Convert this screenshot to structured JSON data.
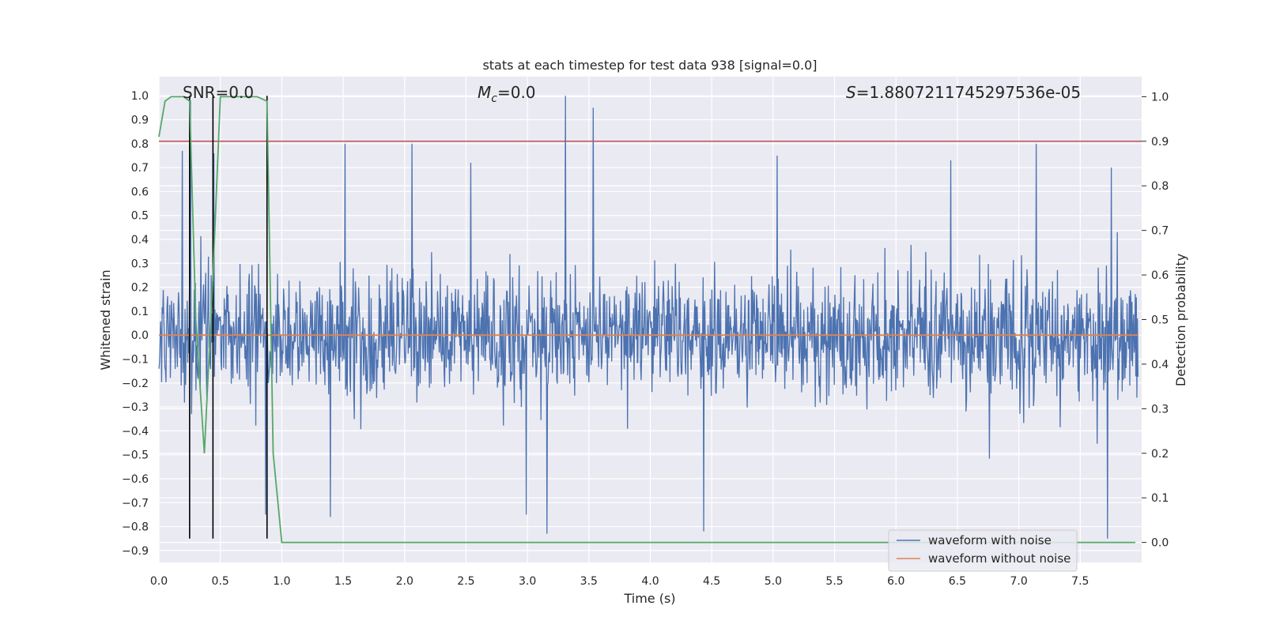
{
  "chart_data": {
    "type": "line",
    "title": "stats at each timestep for test data 938 [signal=0.0]",
    "xlabel": "Time (s)",
    "ylabel": "Whitened strain",
    "ylabel_right": "Detection probability",
    "xlim": [
      0.0,
      8.0
    ],
    "ylim": [
      -0.95,
      1.08
    ],
    "ylim_right": [
      -0.045,
      1.045
    ],
    "x_ticks": [
      "0.0",
      "0.5",
      "1.0",
      "1.5",
      "2.0",
      "2.5",
      "3.0",
      "3.5",
      "4.0",
      "4.5",
      "5.0",
      "5.5",
      "6.0",
      "6.5",
      "7.0",
      "7.5"
    ],
    "y_ticks": [
      "-0.9",
      "-0.8",
      "-0.7",
      "-0.6",
      "-0.5",
      "-0.4",
      "-0.3",
      "-0.2",
      "-0.1",
      "0.0",
      "0.1",
      "0.2",
      "0.3",
      "0.4",
      "0.5",
      "0.6",
      "0.7",
      "0.8",
      "0.9",
      "1.0"
    ],
    "y_ticks_right": [
      "0.0",
      "0.1",
      "0.2",
      "0.3",
      "0.4",
      "0.5",
      "0.6",
      "0.7",
      "0.8",
      "0.9",
      "1.0"
    ],
    "annotations": {
      "snr": "SNR=0.0",
      "mc": "=0.0",
      "mc_symbol": "M",
      "mc_sub": "c",
      "s": "=1.8807211745297536e-05",
      "s_symbol": "S"
    },
    "threshold": {
      "axis": "right",
      "value": 0.9,
      "color": "#c44e52"
    },
    "vertical_markers": {
      "x": [
        0.25,
        0.44,
        0.88
      ],
      "y_range": [
        -0.85,
        1.0
      ],
      "color": "#000000"
    },
    "series": [
      {
        "name": "waveform with noise",
        "color": "#4c72b0",
        "axis": "left",
        "description": "whitened noise, dense band roughly within +/-0.5",
        "peaks": [
          {
            "x": 0.19,
            "y": 0.77
          },
          {
            "x": 0.26,
            "y": 0.98
          },
          {
            "x": 0.45,
            "y": 0.76
          },
          {
            "x": 1.52,
            "y": 0.8
          },
          {
            "x": 2.07,
            "y": 0.8
          },
          {
            "x": 2.55,
            "y": 0.72
          },
          {
            "x": 3.32,
            "y": 1.0
          },
          {
            "x": 3.55,
            "y": 0.95
          },
          {
            "x": 5.05,
            "y": 0.75
          },
          {
            "x": 6.47,
            "y": 0.73
          },
          {
            "x": 7.17,
            "y": 0.8
          },
          {
            "x": 7.78,
            "y": 0.7
          }
        ],
        "troughs": [
          {
            "x": 0.87,
            "y": -0.75
          },
          {
            "x": 1.4,
            "y": -0.76
          },
          {
            "x": 3.17,
            "y": -0.83
          },
          {
            "x": 3.0,
            "y": -0.75
          },
          {
            "x": 4.45,
            "y": -0.82
          },
          {
            "x": 7.75,
            "y": -0.85
          }
        ]
      },
      {
        "name": "waveform without noise",
        "color": "#dd8452",
        "axis": "left",
        "x": [
          0.0,
          8.0
        ],
        "y": [
          0.0,
          0.0
        ]
      },
      {
        "name": "",
        "color": "#55a868",
        "axis": "right",
        "x": [
          0.0,
          0.05,
          0.1,
          0.2,
          0.25,
          0.3,
          0.37,
          0.44,
          0.5,
          0.6,
          0.7,
          0.8,
          0.88,
          0.93,
          1.0,
          8.0
        ],
        "y": [
          0.91,
          0.99,
          1.0,
          1.0,
          0.99,
          0.5,
          0.2,
          0.6,
          1.0,
          1.0,
          1.0,
          1.0,
          0.99,
          0.2,
          0.0,
          0.0
        ]
      }
    ],
    "legend": {
      "placement": "lower-right",
      "entries": [
        "waveform with noise",
        "waveform without noise"
      ]
    },
    "grid": true
  }
}
